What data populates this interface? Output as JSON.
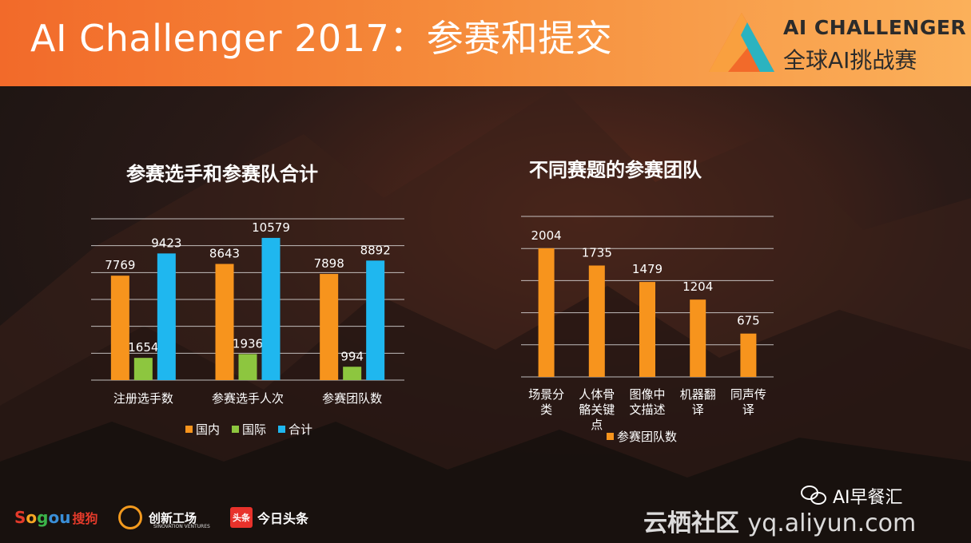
{
  "slide": {
    "title": "AI Challenger 2017：参赛和提交"
  },
  "logo": {
    "en": "AI CHALLENGER",
    "cn": "全球AI挑战赛"
  },
  "colors": {
    "domestic": "#f7941d",
    "international": "#8dc63f",
    "total": "#1fb7ef",
    "header_start": "#f26a2a",
    "header_end": "#fbb05a",
    "grid": "#e6e6e6"
  },
  "chart_data": [
    {
      "type": "bar",
      "title": "参赛选手和参赛队合计",
      "categories": [
        "注册选手数",
        "参赛选手人次",
        "参赛团队数"
      ],
      "series": [
        {
          "name": "国内",
          "values": [
            7769,
            8643,
            7898
          ]
        },
        {
          "name": "国际",
          "values": [
            1654,
            1936,
            994
          ]
        },
        {
          "name": "合计",
          "values": [
            9423,
            10579,
            8892
          ]
        }
      ],
      "ylim": [
        0,
        12000
      ],
      "grid": true,
      "legend": "bottom"
    },
    {
      "type": "bar",
      "title": "不同赛题的参赛团队",
      "categories": [
        "场景分\n类",
        "人体骨\n骼关键\n点",
        "图像中\n文描述",
        "机器翻\n译",
        "同声传\n译"
      ],
      "series": [
        {
          "name": "参赛团队数",
          "values": [
            2004,
            1735,
            1479,
            1204,
            675
          ]
        }
      ],
      "ylim": [
        0,
        2500
      ],
      "grid": true,
      "legend": "bottom"
    }
  ],
  "footer": {
    "sogou_a": "S",
    "sogou_b": "o",
    "sogou_c": "g",
    "sogou_d": "ou",
    "sogou_cn": "搜狗",
    "sinovation": "创新工场",
    "sinovation_sub": "SINOVATION VENTURES",
    "toutiao_box": "头条",
    "toutiao": "今日头条",
    "wechat": "AI早餐汇",
    "watermark_cn": "云栖社区",
    "watermark_url": "yq.aliyun.com"
  }
}
